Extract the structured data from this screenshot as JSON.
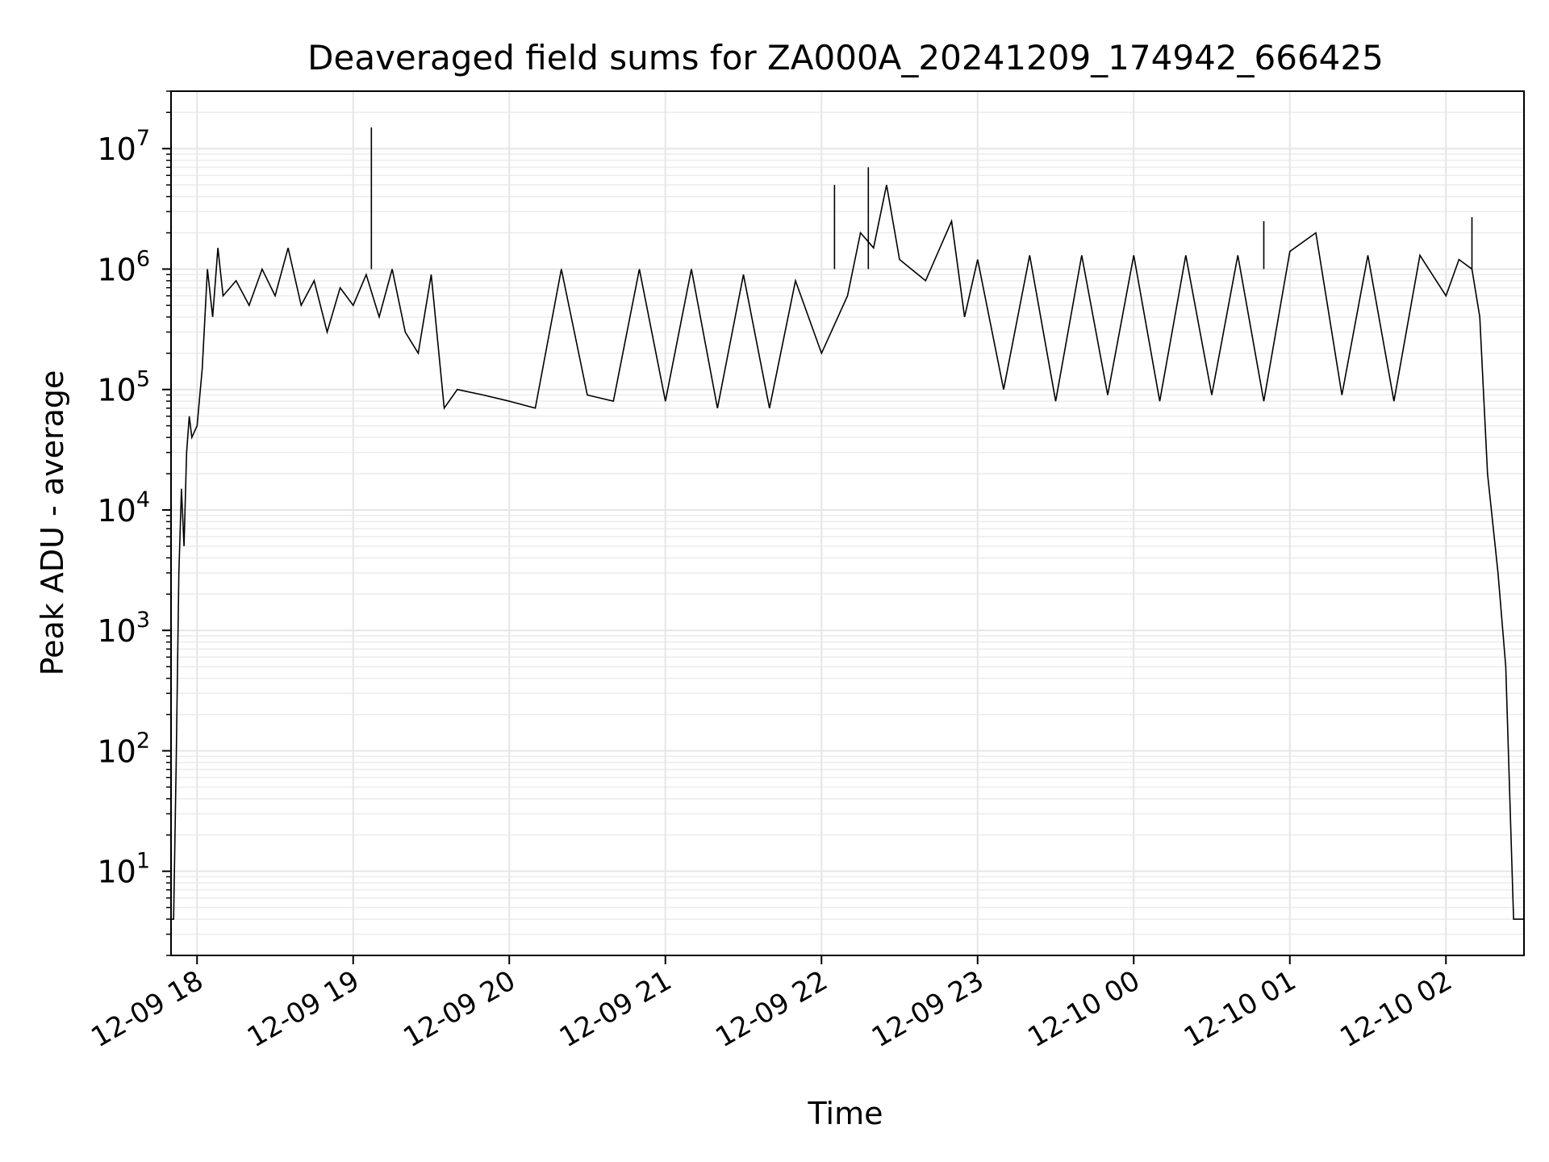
{
  "chart_data": {
    "type": "line",
    "title": "Deaveraged field sums for ZA000A_20241209_174942_666425",
    "xlabel": "Time",
    "ylabel": "Peak ADU - average",
    "yscale": "log",
    "ylim": [
      2,
      30000000
    ],
    "xlim": [
      "2024-12-09 17:50",
      "2024-12-10 02:30"
    ],
    "grid": true,
    "line_color": "#000000",
    "x_ticks": [
      {
        "t": "2024-12-09 18:00",
        "label": "12-09 18"
      },
      {
        "t": "2024-12-09 19:00",
        "label": "12-09 19"
      },
      {
        "t": "2024-12-09 20:00",
        "label": "12-09 20"
      },
      {
        "t": "2024-12-09 21:00",
        "label": "12-09 21"
      },
      {
        "t": "2024-12-09 22:00",
        "label": "12-09 22"
      },
      {
        "t": "2024-12-09 23:00",
        "label": "12-09 23"
      },
      {
        "t": "2024-12-10 00:00",
        "label": "12-10 00"
      },
      {
        "t": "2024-12-10 01:00",
        "label": "12-10 01"
      },
      {
        "t": "2024-12-10 02:00",
        "label": "12-10 02"
      }
    ],
    "y_ticks": [
      {
        "v": 10,
        "base": "10",
        "exp": "1"
      },
      {
        "v": 100,
        "base": "10",
        "exp": "2"
      },
      {
        "v": 1000,
        "base": "10",
        "exp": "3"
      },
      {
        "v": 10000,
        "base": "10",
        "exp": "4"
      },
      {
        "v": 100000,
        "base": "10",
        "exp": "5"
      },
      {
        "v": 1000000,
        "base": "10",
        "exp": "6"
      },
      {
        "v": 10000000,
        "base": "10",
        "exp": "7"
      }
    ],
    "series": [
      {
        "x": [
          "2024-12-09 17:50",
          "2024-12-09 17:51",
          "2024-12-09 17:52",
          "2024-12-09 17:53",
          "2024-12-09 17:54",
          "2024-12-09 17:55",
          "2024-12-09 17:56",
          "2024-12-09 17:57",
          "2024-12-09 17:58",
          "2024-12-09 18:00",
          "2024-12-09 18:02",
          "2024-12-09 18:04",
          "2024-12-09 18:06",
          "2024-12-09 18:08",
          "2024-12-09 18:10",
          "2024-12-09 18:15",
          "2024-12-09 18:20",
          "2024-12-09 18:25",
          "2024-12-09 18:30",
          "2024-12-09 18:35",
          "2024-12-09 18:40",
          "2024-12-09 18:45",
          "2024-12-09 18:50",
          "2024-12-09 18:55",
          "2024-12-09 19:00",
          "2024-12-09 19:05",
          "2024-12-09 19:10",
          "2024-12-09 19:15",
          "2024-12-09 19:20",
          "2024-12-09 19:25",
          "2024-12-09 19:30",
          "2024-12-09 19:35",
          "2024-12-09 19:40",
          "2024-12-09 19:50",
          "2024-12-09 20:00",
          "2024-12-09 20:10",
          "2024-12-09 20:20",
          "2024-12-09 20:30",
          "2024-12-09 20:40",
          "2024-12-09 20:50",
          "2024-12-09 21:00",
          "2024-12-09 21:10",
          "2024-12-09 21:20",
          "2024-12-09 21:30",
          "2024-12-09 21:40",
          "2024-12-09 21:50",
          "2024-12-09 22:00",
          "2024-12-09 22:10",
          "2024-12-09 22:15",
          "2024-12-09 22:20",
          "2024-12-09 22:25",
          "2024-12-09 22:30",
          "2024-12-09 22:40",
          "2024-12-09 22:50",
          "2024-12-09 22:55",
          "2024-12-09 23:00",
          "2024-12-09 23:10",
          "2024-12-09 23:20",
          "2024-12-09 23:30",
          "2024-12-09 23:40",
          "2024-12-09 23:50",
          "2024-12-10 00:00",
          "2024-12-10 00:10",
          "2024-12-10 00:20",
          "2024-12-10 00:30",
          "2024-12-10 00:40",
          "2024-12-10 00:50",
          "2024-12-10 01:00",
          "2024-12-10 01:10",
          "2024-12-10 01:20",
          "2024-12-10 01:30",
          "2024-12-10 01:40",
          "2024-12-10 01:50",
          "2024-12-10 02:00",
          "2024-12-10 02:05",
          "2024-12-10 02:10",
          "2024-12-10 02:13",
          "2024-12-10 02:16",
          "2024-12-10 02:20",
          "2024-12-10 02:23",
          "2024-12-10 02:26",
          "2024-12-10 02:27",
          "2024-12-10 02:28",
          "2024-12-10 02:29",
          "2024-12-10 02:30"
        ],
        "y": [
          4,
          4,
          80,
          3000,
          15000,
          5000,
          30000,
          60000,
          40000,
          50000,
          150000,
          1000000,
          400000,
          1500000,
          600000,
          800000,
          500000,
          1000000,
          600000,
          1500000,
          500000,
          800000,
          300000,
          700000,
          500000,
          900000,
          400000,
          1000000,
          300000,
          200000,
          900000,
          70000,
          100000,
          90000,
          80000,
          70000,
          1000000,
          90000,
          80000,
          1000000,
          80000,
          1000000,
          70000,
          900000,
          70000,
          800000,
          200000,
          600000,
          2000000,
          1500000,
          5000000,
          1200000,
          800000,
          2500000,
          400000,
          1200000,
          100000,
          1300000,
          80000,
          1300000,
          90000,
          1300000,
          80000,
          1300000,
          90000,
          1300000,
          80000,
          1400000,
          2000000,
          90000,
          1300000,
          80000,
          1300000,
          600000,
          1200000,
          1000000,
          400000,
          20000,
          3000,
          500,
          4,
          4,
          4,
          4,
          4
        ]
      }
    ],
    "spikes": [
      {
        "x": "2024-12-09 19:07",
        "y": 15000000
      },
      {
        "x": "2024-12-09 22:18",
        "y": 7000000
      },
      {
        "x": "2024-12-09 22:05",
        "y": 5000000
      },
      {
        "x": "2024-12-10 00:50",
        "y": 2500000
      },
      {
        "x": "2024-12-10 02:10",
        "y": 2700000
      }
    ]
  }
}
